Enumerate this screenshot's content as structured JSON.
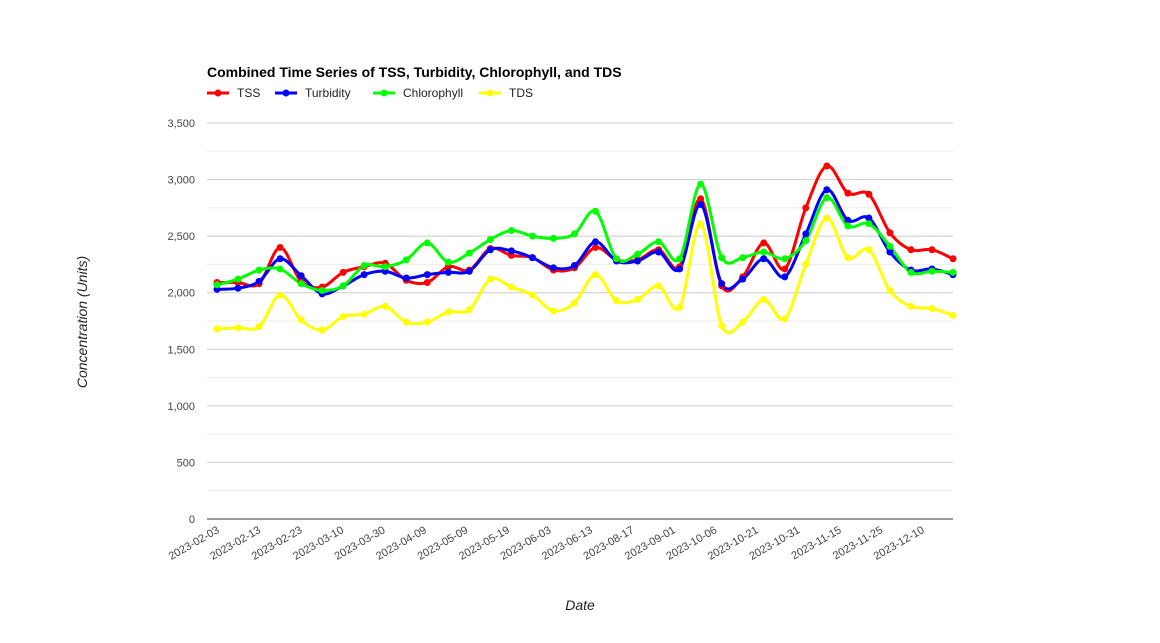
{
  "chart_data": {
    "type": "line",
    "title": "Combined Time Series of TSS, Turbidity, Chlorophyll, and TDS",
    "xlabel": "Date",
    "ylabel": "Concentration (Units)",
    "ylim": [
      0,
      3500
    ],
    "yticks": [
      0,
      500,
      1000,
      1500,
      2000,
      2500,
      3000,
      3500
    ],
    "ytick_labels": [
      "0",
      "500",
      "1,000",
      "1,500",
      "2,000",
      "2,500",
      "3,000",
      "3,500"
    ],
    "grid": true,
    "legend_position": "top-left",
    "x_tick_labels": [
      "2023-02-03",
      "2023-02-13",
      "2023-02-23",
      "2023-03-10",
      "2023-03-30",
      "2023-04-09",
      "2023-05-09",
      "2023-05-19",
      "2023-06-03",
      "2023-06-13",
      "2023-08-17",
      "2023-09-01",
      "2023-10-06",
      "2023-10-21",
      "2023-10-31",
      "2023-11-15",
      "2023-11-25",
      "2023-12-10"
    ],
    "series": [
      {
        "name": "TSS",
        "color": "#ff0000",
        "values": [
          2090,
          2090,
          2080,
          2400,
          2100,
          2050,
          2180,
          2230,
          2260,
          2110,
          2090,
          2230,
          2200,
          2390,
          2330,
          2310,
          2200,
          2220,
          2400,
          2290,
          2290,
          2380,
          2230,
          2830,
          2060,
          2140,
          2440,
          2210,
          2750,
          3120,
          2880,
          2870,
          2530,
          2380,
          2380,
          2300
        ]
      },
      {
        "name": "Turbidity",
        "color": "#0000ff",
        "values": [
          2030,
          2040,
          2100,
          2300,
          2150,
          1990,
          2060,
          2160,
          2190,
          2130,
          2160,
          2180,
          2190,
          2380,
          2370,
          2310,
          2220,
          2240,
          2450,
          2280,
          2280,
          2360,
          2210,
          2780,
          2080,
          2120,
          2300,
          2140,
          2520,
          2910,
          2640,
          2660,
          2360,
          2200,
          2210,
          2160
        ]
      },
      {
        "name": "Chlorophyll",
        "color": "#00ff00",
        "values": [
          2070,
          2120,
          2200,
          2210,
          2080,
          2020,
          2060,
          2240,
          2230,
          2290,
          2440,
          2270,
          2350,
          2470,
          2550,
          2500,
          2480,
          2520,
          2720,
          2300,
          2340,
          2450,
          2300,
          2960,
          2310,
          2310,
          2360,
          2300,
          2460,
          2840,
          2590,
          2610,
          2410,
          2180,
          2190,
          2180
        ]
      },
      {
        "name": "TDS",
        "color": "#ffff00",
        "values": [
          1680,
          1690,
          1700,
          1980,
          1760,
          1670,
          1790,
          1810,
          1880,
          1740,
          1740,
          1830,
          1850,
          2120,
          2050,
          1980,
          1840,
          1910,
          2160,
          1930,
          1940,
          2060,
          1870,
          2610,
          1710,
          1740,
          1940,
          1770,
          2250,
          2660,
          2310,
          2380,
          2020,
          1880,
          1860,
          1800
        ]
      }
    ]
  }
}
